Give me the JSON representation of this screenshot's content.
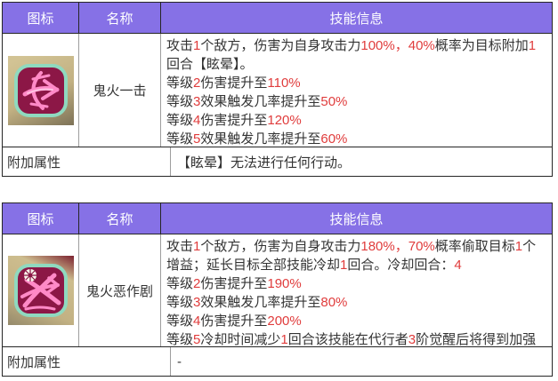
{
  "colors": {
    "header_bg": "#8671e6",
    "header_text": "#ffffff",
    "body_text": "#333333",
    "highlight_red": "#e03c3c",
    "border_dark": "#262626",
    "border_light": "#9e9e9e",
    "icon_fill": "#8c1746",
    "icon_border": "#8fd9bf",
    "icon_glyph": "#ff8ac7",
    "icon_backdrop": "#c2b183"
  },
  "tables": [
    {
      "header": {
        "icon": "图标",
        "name": "名称",
        "info": "技能信息"
      },
      "skill": {
        "name": "鬼火一击",
        "icon": "ghost-fire-strike-icon",
        "info_lines": [
          [
            {
              "t": "攻击"
            },
            {
              "t": "1",
              "red": true
            },
            {
              "t": "个敌方，伤害为自身攻击力"
            },
            {
              "t": "100%，40%",
              "red": true
            },
            {
              "t": "概率为目标附加"
            },
            {
              "t": "1",
              "red": true
            },
            {
              "t": "回合【眩晕】。"
            }
          ],
          [
            {
              "t": "等级"
            },
            {
              "t": "2",
              "red": true
            },
            {
              "t": "伤害提升至"
            },
            {
              "t": "110%",
              "red": true
            }
          ],
          [
            {
              "t": "等级"
            },
            {
              "t": "3",
              "red": true
            },
            {
              "t": "效果触发几率提升至"
            },
            {
              "t": "50%",
              "red": true
            }
          ],
          [
            {
              "t": "等级"
            },
            {
              "t": "4",
              "red": true
            },
            {
              "t": "伤害提升至"
            },
            {
              "t": "120%",
              "red": true
            }
          ],
          [
            {
              "t": "等级"
            },
            {
              "t": "5",
              "red": true
            },
            {
              "t": "效果触发几率提升至"
            },
            {
              "t": "60%",
              "red": true
            }
          ]
        ]
      },
      "footer": {
        "label": "附加属性",
        "content_lines": [
          [
            {
              "t": "【眩晕】无法进行任何行动。"
            }
          ]
        ]
      }
    },
    {
      "header": {
        "icon": "图标",
        "name": "名称",
        "info": "技能信息"
      },
      "skill": {
        "name": "鬼火恶作剧",
        "icon": "ghost-fire-prank-icon",
        "info_lines": [
          [
            {
              "t": "攻击"
            },
            {
              "t": "1",
              "red": true
            },
            {
              "t": "个敌方，伤害为自身攻击力"
            },
            {
              "t": "180%，70%",
              "red": true
            },
            {
              "t": "概率偷取目标"
            },
            {
              "t": "1",
              "red": true
            },
            {
              "t": "个增益；延长目标全部技能冷却"
            },
            {
              "t": "1",
              "red": true
            },
            {
              "t": "回合。冷却回合："
            },
            {
              "t": "4",
              "red": true
            }
          ],
          [
            {
              "t": "等级"
            },
            {
              "t": "2",
              "red": true
            },
            {
              "t": "伤害提升至"
            },
            {
              "t": "190%",
              "red": true
            }
          ],
          [
            {
              "t": "等级"
            },
            {
              "t": "3",
              "red": true
            },
            {
              "t": "效果触发几率提升至"
            },
            {
              "t": "80%",
              "red": true
            }
          ],
          [
            {
              "t": "等级"
            },
            {
              "t": "4",
              "red": true
            },
            {
              "t": "伤害提升至"
            },
            {
              "t": "200%",
              "red": true
            }
          ],
          [
            {
              "t": "等级"
            },
            {
              "t": "5",
              "red": true
            },
            {
              "t": "冷却时间减少"
            },
            {
              "t": "1",
              "red": true
            },
            {
              "t": "回合该技能在代行者"
            },
            {
              "t": "3",
              "red": true
            },
            {
              "t": "阶觉醒后将得到加强"
            }
          ]
        ]
      },
      "footer": {
        "label": "附加属性",
        "content_lines": [
          [
            {
              "t": "-"
            }
          ]
        ]
      }
    }
  ]
}
